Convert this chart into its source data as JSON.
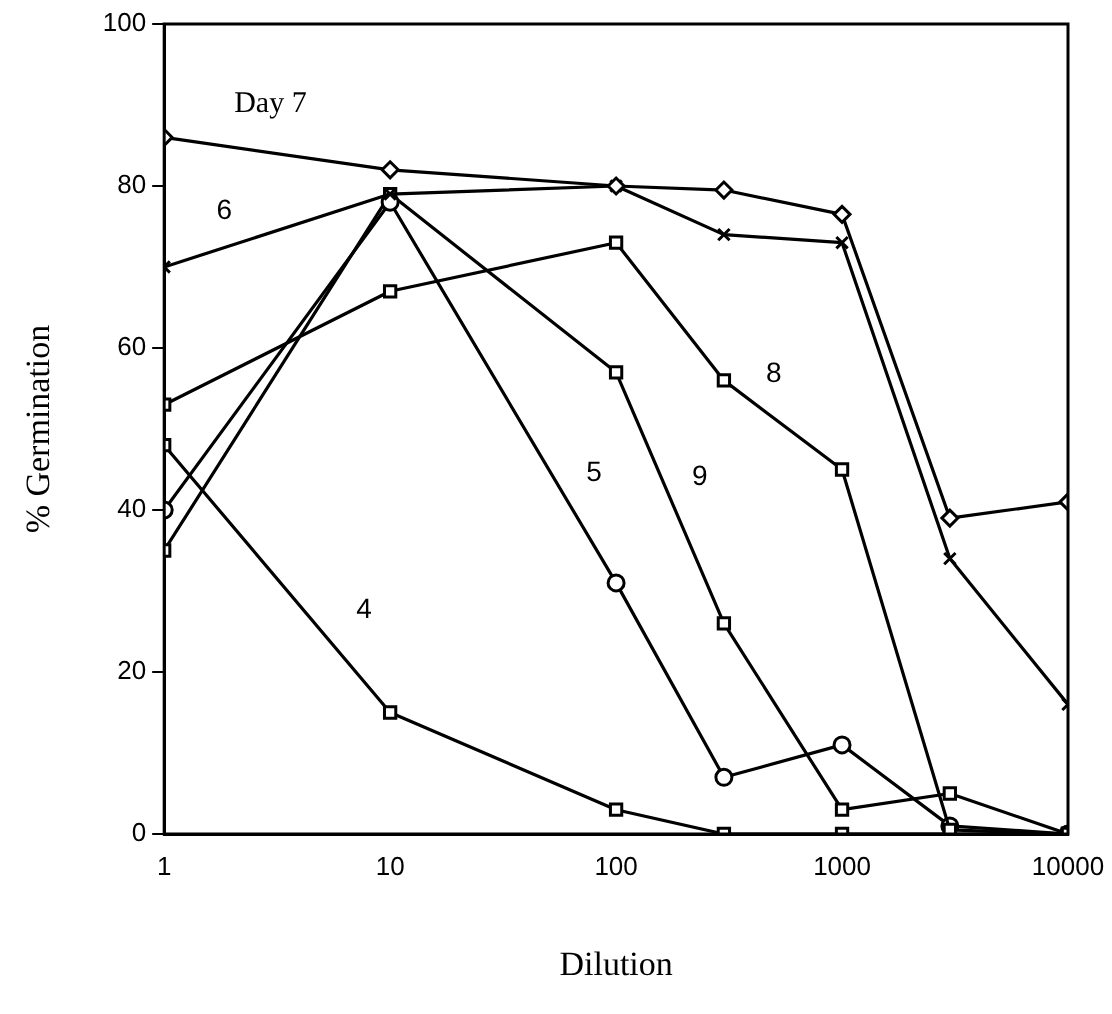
{
  "chart_data": {
    "type": "line",
    "xlabel": "Dilution",
    "ylabel": "% Germination",
    "log": "x",
    "xlim": [
      1,
      10000
    ],
    "xticks": [
      1,
      10,
      100,
      1000,
      10000
    ],
    "ylim": [
      0,
      100
    ],
    "yticks": [
      0,
      20,
      40,
      60,
      80,
      100
    ],
    "grid": false,
    "legend": false,
    "line_style": "solid",
    "x": [
      1,
      10,
      100,
      300,
      1000,
      3000,
      10000
    ],
    "series": [
      {
        "color": "#000000",
        "marker": "diamond",
        "values": [
          86,
          82,
          80,
          79.5,
          76.5,
          39,
          41
        ]
      },
      {
        "name": "6",
        "color": "#000000",
        "marker": "cross",
        "values": [
          70,
          79,
          80,
          74,
          73,
          34,
          16
        ]
      },
      {
        "name": "8",
        "color": "#000000",
        "marker": "square",
        "values": [
          53,
          67,
          73,
          56,
          45,
          0.5,
          0
        ]
      },
      {
        "name": "5",
        "color": "#000000",
        "marker": "circle",
        "values": [
          40,
          78,
          31,
          7,
          11,
          1,
          0
        ]
      },
      {
        "name": "9",
        "color": "#000000",
        "marker": "square",
        "values": [
          35,
          79,
          57,
          26,
          3,
          5,
          0
        ]
      },
      {
        "name": "4",
        "color": "#000000",
        "marker": "square",
        "values": [
          48,
          15,
          3,
          0,
          0,
          0,
          0
        ]
      }
    ],
    "annotations": [
      "Day 7"
    ]
  }
}
